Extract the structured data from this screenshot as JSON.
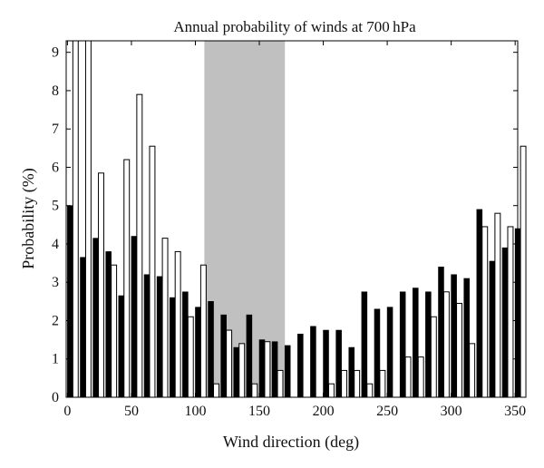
{
  "chart_data": {
    "type": "bar",
    "title": "Annual probability of winds at 700 hPa",
    "xlabel": "Wind direction (deg)",
    "ylabel": "Probability (%)",
    "xlim": [
      -1,
      352
    ],
    "ylim": [
      0,
      9.3
    ],
    "xticks": [
      0,
      50,
      100,
      150,
      200,
      250,
      300,
      350
    ],
    "yticks": [
      0,
      1,
      2,
      3,
      4,
      5,
      6,
      7,
      8,
      9
    ],
    "grid": false,
    "shaded_region": [
      107,
      170
    ],
    "bar_spacing_deg": 10,
    "series": [
      {
        "fill": "black",
        "x": [
          0,
          10,
          20,
          30,
          40,
          50,
          60,
          70,
          80,
          90,
          100,
          110,
          120,
          130,
          140,
          150,
          160,
          170,
          180,
          190,
          200,
          210,
          220,
          230,
          240,
          250,
          260,
          270,
          280,
          290,
          300,
          310,
          320,
          330,
          340,
          350
        ],
        "values": [
          5.0,
          3.65,
          4.15,
          3.8,
          2.65,
          4.2,
          3.2,
          3.15,
          2.6,
          2.75,
          2.35,
          2.5,
          2.15,
          1.3,
          2.15,
          1.5,
          1.45,
          1.35,
          1.65,
          1.85,
          1.75,
          1.75,
          1.3,
          2.75,
          2.3,
          2.35,
          2.75,
          2.85,
          2.75,
          3.4,
          3.2,
          3.1,
          4.9,
          3.55,
          3.9,
          4.4
        ]
      },
      {
        "fill": "white",
        "x": [
          0,
          10,
          20,
          30,
          40,
          50,
          60,
          70,
          80,
          90,
          100,
          110,
          120,
          130,
          140,
          150,
          160,
          170,
          180,
          190,
          200,
          210,
          220,
          230,
          240,
          250,
          260,
          270,
          280,
          290,
          300,
          310,
          320,
          330,
          340,
          350
        ],
        "values": [
          9.3,
          9.3,
          5.85,
          3.45,
          6.2,
          7.9,
          6.55,
          4.15,
          3.8,
          2.1,
          3.45,
          0.35,
          1.75,
          1.4,
          0.35,
          1.45,
          0.7,
          0,
          0,
          0,
          0.35,
          0.7,
          0.7,
          0.35,
          0.7,
          0,
          1.05,
          1.05,
          2.1,
          2.75,
          2.45,
          1.4,
          4.45,
          4.8,
          4.45,
          6.55
        ]
      }
    ]
  }
}
